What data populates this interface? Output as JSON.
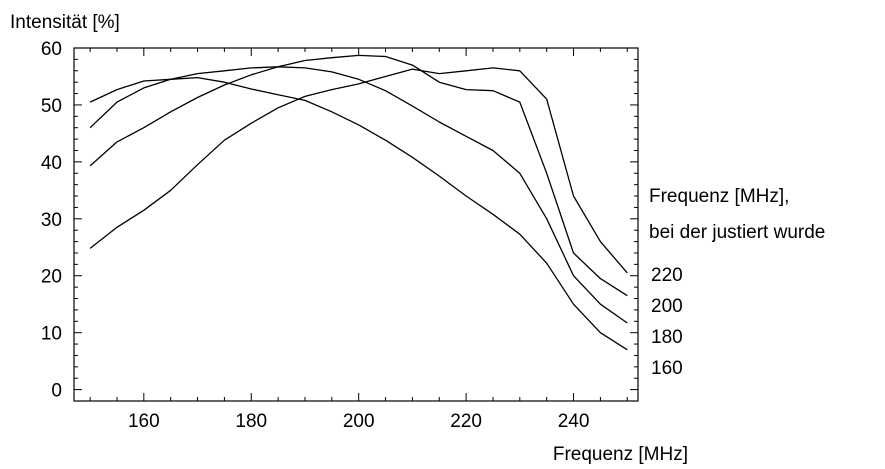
{
  "chart_data": {
    "type": "line",
    "ylabel": "Intensität [%]",
    "xlabel": "Frequenz [MHz]",
    "xlim": [
      147,
      252
    ],
    "ylim": [
      -2,
      60
    ],
    "xticks": [
      160,
      180,
      200,
      220,
      240
    ],
    "yticks": [
      0,
      10,
      20,
      30,
      40,
      50,
      60
    ],
    "grid": false,
    "legend": {
      "title": "Frequenz [MHz],\nbei der justiert wurde",
      "title_lines": [
        "Frequenz [MHz],",
        "bei der justiert wurde"
      ],
      "labels": [
        "220",
        "200",
        "180",
        "160"
      ],
      "placement": "right"
    },
    "series": [
      {
        "name": "160",
        "x": [
          150,
          155,
          160,
          165,
          170,
          175,
          180,
          185,
          190,
          195,
          200,
          205,
          210,
          215,
          220,
          225,
          230,
          235,
          240,
          245,
          250
        ],
        "y": [
          50.5,
          52.7,
          54.2,
          54.5,
          54.8,
          54.0,
          52.8,
          51.8,
          50.8,
          48.8,
          46.5,
          43.8,
          40.8,
          37.5,
          34.0,
          30.8,
          27.3,
          22.2,
          15.0,
          10.0,
          7.0
        ]
      },
      {
        "name": "180",
        "x": [
          150,
          155,
          160,
          165,
          170,
          175,
          180,
          185,
          190,
          195,
          200,
          205,
          210,
          215,
          220,
          225,
          230,
          235,
          240,
          245,
          250
        ],
        "y": [
          46.0,
          50.5,
          53.0,
          54.5,
          55.5,
          56.0,
          56.5,
          56.7,
          56.5,
          55.8,
          54.5,
          52.5,
          49.8,
          47.0,
          44.5,
          42.0,
          38.0,
          30.0,
          20.0,
          15.0,
          11.7
        ]
      },
      {
        "name": "200",
        "x": [
          150,
          155,
          160,
          165,
          170,
          175,
          180,
          185,
          190,
          195,
          200,
          205,
          210,
          215,
          220,
          225,
          230,
          235,
          240,
          245,
          250
        ],
        "y": [
          39.3,
          43.5,
          46.0,
          48.8,
          51.3,
          53.5,
          55.3,
          56.7,
          57.8,
          58.3,
          58.7,
          58.5,
          57.0,
          54.0,
          52.7,
          52.5,
          50.5,
          38.0,
          24.0,
          19.5,
          16.5
        ]
      },
      {
        "name": "220",
        "x": [
          150,
          155,
          160,
          165,
          170,
          175,
          180,
          185,
          190,
          195,
          200,
          205,
          210,
          215,
          220,
          225,
          230,
          235,
          240,
          245,
          250
        ],
        "y": [
          24.8,
          28.5,
          31.5,
          35.0,
          39.5,
          43.8,
          46.8,
          49.5,
          51.5,
          52.7,
          53.7,
          55.0,
          56.3,
          55.5,
          56.0,
          56.5,
          56.0,
          51.0,
          34.0,
          26.0,
          20.5
        ]
      }
    ]
  }
}
